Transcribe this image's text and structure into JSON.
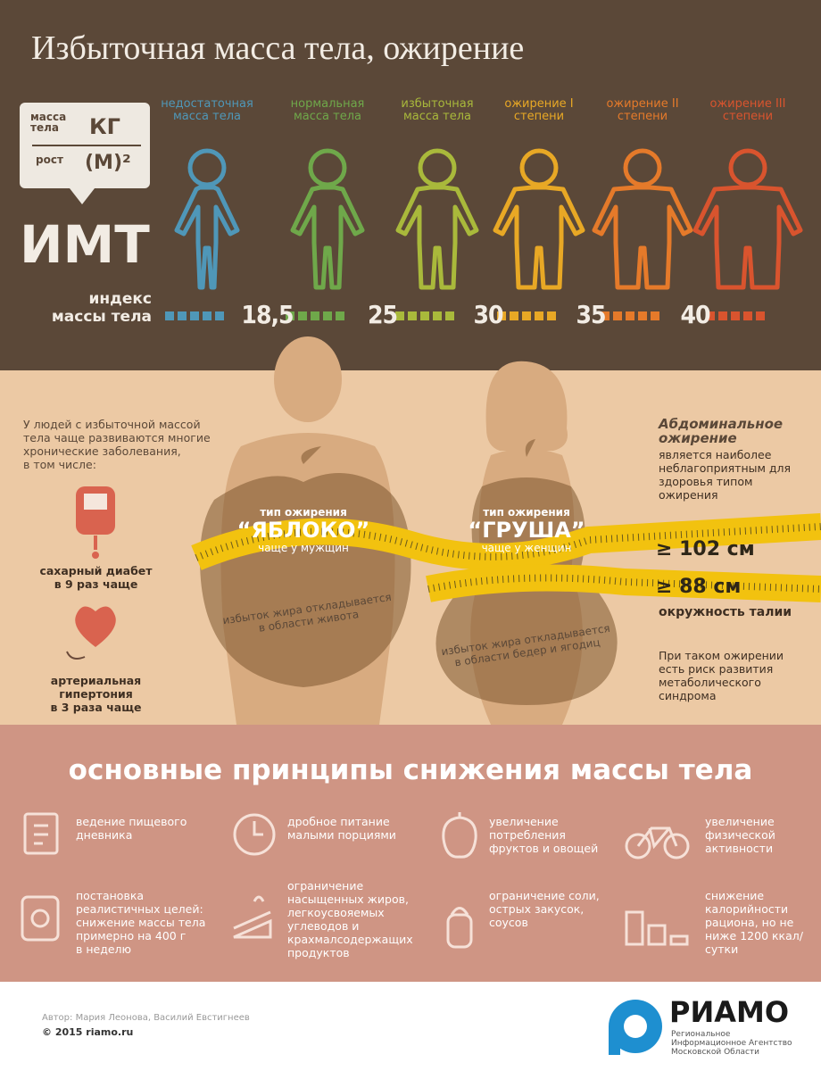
{
  "header": {
    "title": "Избыточная масса тела, ожирение",
    "formula": {
      "mass": "масса\nтела",
      "mass_unit": "КГ",
      "height": "рост",
      "height_unit": "(М)²"
    },
    "bmi": "ИМТ",
    "bmi_full": "индекс\nмассы тела"
  },
  "categories": [
    {
      "label": "недостаточная\nмасса тела",
      "color": "#4f97b8"
    },
    {
      "label": "нормальная\nмасса тела",
      "color": "#6fa84a"
    },
    {
      "label": "избыточная\nмасса тела",
      "color": "#a9b93b"
    },
    {
      "label": "ожирение I\nстепени",
      "color": "#e8a825"
    },
    {
      "label": "ожирение II\nстепени",
      "color": "#e57a2a"
    },
    {
      "label": "ожирение III\nстепени",
      "color": "#d9542e"
    }
  ],
  "thresholds": [
    "18,5",
    "25",
    "30",
    "35",
    "40"
  ],
  "risks": {
    "intro": "У людей с избыточной массой\nтела чаще развиваются многие\nхронические заболевания,\nв том числе:",
    "items": [
      "сахарный диабет\nв 9 раз чаще",
      "артериальная гипертония\nв 3 раза чаще"
    ]
  },
  "types": [
    {
      "title": "тип ожирения",
      "name": "“ЯБЛОКО”",
      "note": "чаще у мужщин",
      "fat": "избыток жира откладывается\nв области живота"
    },
    {
      "title": "тип ожирения",
      "name": "“ГРУША”",
      "note": "чаще у женщин",
      "fat": "избыток жира откладывается\nв области бедер и ягодиц"
    }
  ],
  "abdominal": {
    "title": "Абдоминальное\nожирение",
    "text": "является наиболее\nнеблагоприятным для\nздоровья типом\nожирения",
    "waist": [
      "≥ 102 см",
      "≥ 88 см"
    ],
    "waist_label": "окружность талии",
    "risk": "При таком ожирении\nесть риск развития\nметаболического\nсиндрома"
  },
  "principles": {
    "title": "основные принципы снижения массы тела",
    "items": [
      "ведение пищевого\nдневника",
      "дробное питание\nмалыми порциями",
      "увеличение\nпотребления\nфруктов и овощей",
      "увеличение\nфизической\nактивности",
      "постановка\nреалистичных целей:\nснижение массы тела\nпримерно на 400 г\nв неделю",
      "ограничение\nнасыщенных жиров,\nлегкоусвояемых\nуглеводов и\nкрахмалсодержащих\nпродуктов",
      "ограничение соли,\nострых закусок,\nсоусов",
      "снижение\nкалорийности\nрациона, но не\nниже 1200 ккал/\nсутки"
    ]
  },
  "footer": {
    "authors": "Автор: Мария Леонова, Василий Евстигнеев",
    "copyright": "© 2015 riamo.ru",
    "logo": "РИАМО",
    "agency": "Региональное\nИнформационное Агентство\nМосковской Области"
  }
}
